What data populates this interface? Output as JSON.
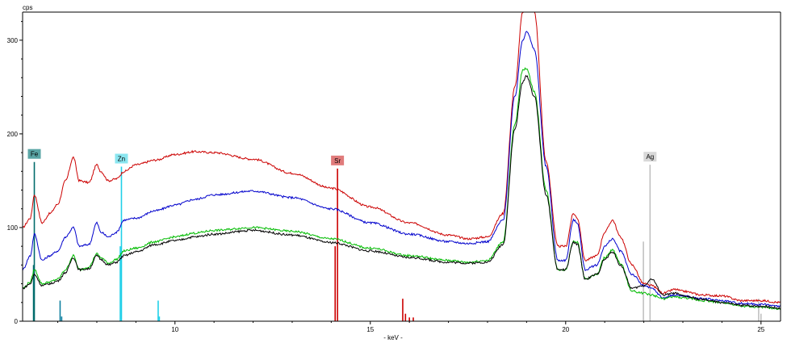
{
  "chart_data": {
    "type": "line",
    "title": "",
    "xlabel": "- keV -",
    "ylabel": "cps",
    "xlim": [
      6.1,
      25.5
    ],
    "ylim": [
      0,
      330
    ],
    "x_ticks": [
      10,
      15,
      20,
      25
    ],
    "y_ticks": [
      0,
      100,
      200,
      300
    ],
    "grid": false,
    "legend": "none",
    "series": [
      {
        "color": "#cc0000",
        "x": [
          6.1,
          6.3,
          6.4,
          6.6,
          6.8,
          7.0,
          7.2,
          7.4,
          7.55,
          7.8,
          8.0,
          8.1,
          8.3,
          8.5,
          8.7,
          9.0,
          9.5,
          10.0,
          10.5,
          11.0,
          12.0,
          13.0,
          14.0,
          15.0,
          16.0,
          17.0,
          17.5,
          18.0,
          18.4,
          18.7,
          18.9,
          19.0,
          19.2,
          19.5,
          19.8,
          20.0,
          20.2,
          20.3,
          20.5,
          20.8,
          21.0,
          21.2,
          21.4,
          21.7,
          22.0,
          22.2,
          22.5,
          22.8,
          23.0,
          23.5,
          24.0,
          24.5,
          25.0,
          25.5
        ],
        "y": [
          100,
          110,
          135,
          105,
          115,
          125,
          150,
          175,
          150,
          148,
          167,
          160,
          150,
          152,
          160,
          167,
          172,
          178,
          181,
          180,
          173,
          158,
          142,
          122,
          105,
          92,
          88,
          90,
          115,
          250,
          330,
          350,
          330,
          170,
          80,
          80,
          115,
          110,
          65,
          70,
          95,
          108,
          90,
          60,
          40,
          38,
          30,
          34,
          32,
          28,
          27,
          22,
          22,
          20
        ]
      },
      {
        "color": "#0000cc",
        "x": [
          6.1,
          6.3,
          6.4,
          6.6,
          6.8,
          7.0,
          7.2,
          7.4,
          7.55,
          7.8,
          8.0,
          8.1,
          8.3,
          8.5,
          8.7,
          9.0,
          9.5,
          10.0,
          10.5,
          11.0,
          12.0,
          13.0,
          14.0,
          15.0,
          16.0,
          17.0,
          17.5,
          18.0,
          18.4,
          18.7,
          18.9,
          19.0,
          19.2,
          19.5,
          19.8,
          20.0,
          20.2,
          20.3,
          20.5,
          20.8,
          21.0,
          21.2,
          21.4,
          21.7,
          22.0,
          22.2,
          22.5,
          22.8,
          23.0,
          23.5,
          24.0,
          24.5,
          25.0,
          25.5
        ],
        "y": [
          55,
          70,
          93,
          65,
          70,
          75,
          90,
          100,
          80,
          82,
          105,
          95,
          90,
          95,
          108,
          110,
          118,
          124,
          130,
          135,
          139,
          132,
          120,
          105,
          93,
          85,
          83,
          85,
          108,
          240,
          300,
          310,
          290,
          165,
          65,
          65,
          108,
          105,
          55,
          60,
          80,
          88,
          75,
          50,
          38,
          35,
          25,
          28,
          27,
          24,
          22,
          19,
          18,
          16
        ]
      },
      {
        "color": "#00bb00",
        "x": [
          6.1,
          6.3,
          6.4,
          6.6,
          6.8,
          7.0,
          7.2,
          7.4,
          7.55,
          7.8,
          8.0,
          8.1,
          8.3,
          8.5,
          8.7,
          9.0,
          9.5,
          10.0,
          10.5,
          11.0,
          12.0,
          13.0,
          14.0,
          15.0,
          16.0,
          17.0,
          17.5,
          18.0,
          18.4,
          18.7,
          18.9,
          19.0,
          19.2,
          19.5,
          19.8,
          20.0,
          20.2,
          20.3,
          20.5,
          20.8,
          21.0,
          21.2,
          21.4,
          21.7,
          22.0,
          22.2,
          22.5,
          22.8,
          23.0,
          23.5,
          24.0,
          24.5,
          25.0,
          25.5
        ],
        "y": [
          35,
          42,
          55,
          40,
          42,
          45,
          55,
          70,
          55,
          58,
          72,
          68,
          62,
          66,
          75,
          78,
          85,
          90,
          94,
          97,
          100,
          96,
          88,
          78,
          70,
          65,
          63,
          65,
          85,
          210,
          268,
          270,
          245,
          140,
          55,
          55,
          86,
          84,
          45,
          50,
          68,
          76,
          62,
          32,
          30,
          28,
          24,
          26,
          25,
          22,
          20,
          16,
          15,
          13
        ]
      },
      {
        "color": "#000000",
        "x": [
          6.1,
          6.3,
          6.4,
          6.6,
          6.8,
          7.0,
          7.2,
          7.4,
          7.55,
          7.8,
          8.0,
          8.1,
          8.3,
          8.5,
          8.7,
          9.0,
          9.5,
          10.0,
          10.5,
          11.0,
          12.0,
          13.0,
          14.0,
          15.0,
          16.0,
          17.0,
          17.5,
          18.0,
          18.4,
          18.7,
          18.9,
          19.0,
          19.2,
          19.5,
          19.8,
          20.0,
          20.2,
          20.3,
          20.5,
          20.8,
          21.0,
          21.2,
          21.4,
          21.7,
          22.0,
          22.2,
          22.5,
          22.8,
          23.0,
          23.5,
          24.0,
          24.5,
          25.0,
          25.5
        ],
        "y": [
          35,
          40,
          50,
          38,
          40,
          43,
          52,
          68,
          55,
          56,
          70,
          66,
          60,
          63,
          70,
          74,
          82,
          86,
          90,
          93,
          97,
          92,
          84,
          75,
          68,
          63,
          62,
          63,
          82,
          205,
          255,
          262,
          240,
          135,
          55,
          55,
          84,
          82,
          45,
          50,
          66,
          74,
          60,
          35,
          38,
          45,
          28,
          30,
          27,
          23,
          20,
          17,
          16,
          14
        ]
      }
    ],
    "element_markers": [
      {
        "label": "Fe",
        "x": 6.4,
        "line_color": "#006b6b",
        "box_color": "#5aa5a5",
        "line_top": 170
      },
      {
        "label": "Zn",
        "x": 8.63,
        "line_color": "#20d0e8",
        "box_color": "#8ae6f0",
        "line_top": 165
      },
      {
        "label": "Sr",
        "x": 14.16,
        "line_color": "#cc0000",
        "box_color": "#e07b7b",
        "line_top": 163
      },
      {
        "label": "Ag",
        "x": 22.16,
        "line_color": "#b0b0b0",
        "box_color": "#d8d8d8",
        "line_top": 167
      }
    ],
    "marker_lines": [
      {
        "x": 6.4,
        "height": 170,
        "color": "#006b6b"
      },
      {
        "x": 6.38,
        "height": 60,
        "color": "#006b6b"
      },
      {
        "x": 7.06,
        "height": 22,
        "color": "#1080a0"
      },
      {
        "x": 7.1,
        "height": 5,
        "color": "#1080a0"
      },
      {
        "x": 8.63,
        "height": 165,
        "color": "#20d0e8"
      },
      {
        "x": 8.6,
        "height": 80,
        "color": "#20d0e8"
      },
      {
        "x": 9.57,
        "height": 22,
        "color": "#20d0e8"
      },
      {
        "x": 9.6,
        "height": 5,
        "color": "#20d0e8"
      },
      {
        "x": 14.1,
        "height": 80,
        "color": "#cc0000"
      },
      {
        "x": 14.16,
        "height": 163,
        "color": "#cc0000"
      },
      {
        "x": 15.83,
        "height": 24,
        "color": "#cc0000"
      },
      {
        "x": 15.9,
        "height": 8,
        "color": "#cc0000"
      },
      {
        "x": 16.0,
        "height": 4,
        "color": "#cc0000"
      },
      {
        "x": 16.1,
        "height": 4,
        "color": "#cc0000"
      },
      {
        "x": 21.99,
        "height": 85,
        "color": "#c0c0c0"
      },
      {
        "x": 22.16,
        "height": 167,
        "color": "#c0c0c0"
      },
      {
        "x": 24.94,
        "height": 24,
        "color": "#c0c0c0"
      },
      {
        "x": 25.0,
        "height": 8,
        "color": "#c0c0c0"
      }
    ]
  }
}
